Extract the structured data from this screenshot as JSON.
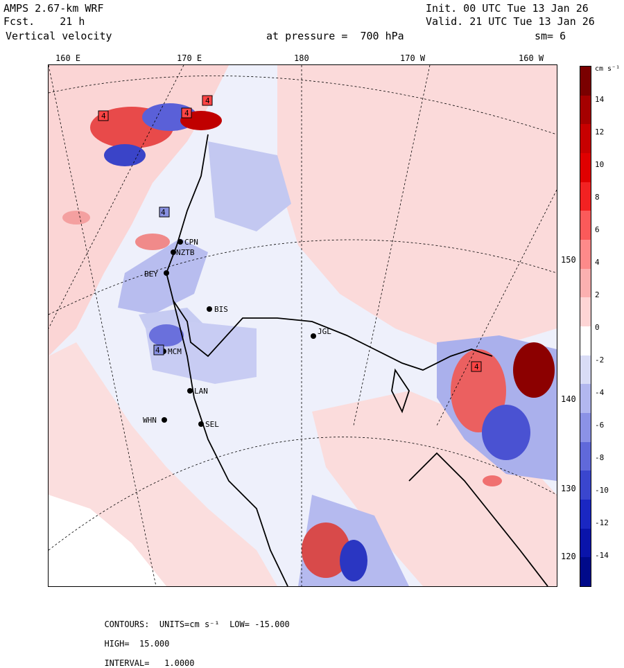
{
  "header": {
    "title": "AMPS 2.67-km WRF",
    "forecast": "Fcst.    21 h",
    "variable": "Vertical velocity",
    "init": "Init. 00 UTC Tue 13 Jan 26",
    "valid": "Valid. 21 UTC Tue 13 Jan 26",
    "level": "at pressure =  700 hPa",
    "smoothing": "sm= 6"
  },
  "lon_labels": [
    "160 E",
    "170 E",
    "180",
    "170 W",
    "160 W"
  ],
  "lat_labels": [
    "150 W",
    "140 W",
    "130 W",
    "120 W"
  ],
  "stations": [
    "CPN",
    "NZTB",
    "BEY",
    "BIS",
    "JGL",
    "MCM",
    "LAN",
    "WHN",
    "SEL"
  ],
  "extrema_markers": [
    "4",
    "4",
    "4",
    "4",
    "4",
    "4"
  ],
  "colorbar": {
    "units": "cm s⁻¹",
    "ticks": [
      "14",
      "12",
      "10",
      "8",
      "6",
      "4",
      "2",
      "0",
      "-2",
      "-4",
      "-6",
      "-8",
      "-10",
      "-12",
      "-14"
    ],
    "colors": [
      "#7a0000",
      "#a50000",
      "#c80000",
      "#e00000",
      "#f22222",
      "#fb5a5a",
      "#fd8a8a",
      "#fbb0b0",
      "#fdd5d5",
      "#ffffff",
      "#d9dcf6",
      "#b2b7ef",
      "#8b92e6",
      "#6069da",
      "#3a46ce",
      "#1a27c2",
      "#0a14aa",
      "#000a8a"
    ]
  },
  "footer": {
    "contours": "CONTOURS:  UNITS=cm s⁻¹  LOW= -15.000",
    "high": "HIGH=  15.000",
    "interval": "INTERVAL=   1.0000"
  },
  "colors": {
    "pos_weak": "#fbd8d8",
    "neg_weak": "#dfe2f8",
    "ice": "#ffffff"
  }
}
